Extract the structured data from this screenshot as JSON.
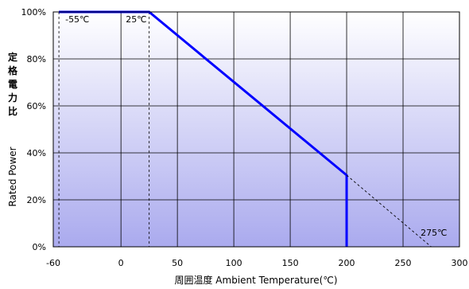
{
  "chart_data": {
    "type": "line",
    "x_range": [
      -60,
      300
    ],
    "y_range": [
      0,
      100
    ],
    "x_ticks": [
      "-60",
      "0",
      "50",
      "100",
      "150",
      "200",
      "250",
      "300"
    ],
    "y_ticks": [
      "0%",
      "20%",
      "40%",
      "60%",
      "80%",
      "100%"
    ],
    "x_tick_values": [
      -60,
      0,
      50,
      100,
      150,
      200,
      250,
      300
    ],
    "y_tick_values": [
      0,
      20,
      40,
      60,
      80,
      100
    ],
    "xlabel": "周囲温度 Ambient Temperature(℃)",
    "ylabel_jp": [
      "定",
      "格",
      "電",
      "力",
      "比"
    ],
    "ylabel_en": "Rated Power",
    "grid": true,
    "series": [
      {
        "style": "solid",
        "color": "#0000ff",
        "points": [
          [
            -55,
            100
          ],
          [
            25,
            100
          ],
          [
            200,
            30.5
          ],
          [
            200,
            0
          ]
        ]
      },
      {
        "style": "dashed",
        "color": "#000000",
        "points": [
          [
            200,
            30.5
          ],
          [
            275,
            0
          ]
        ]
      }
    ],
    "reference_lines": [
      {
        "x": -55,
        "style": "dashed"
      },
      {
        "x": 25,
        "style": "dashed"
      }
    ],
    "annotations": [
      {
        "text": "-55℃",
        "x": -55,
        "y": 100
      },
      {
        "text": "25℃",
        "x": 25,
        "y": 100
      },
      {
        "text": "275℃",
        "x": 275,
        "y": 0
      }
    ],
    "colors": {
      "plot_top": "#ffffff",
      "plot_bottom": "#aaaaee",
      "line": "#0000ff"
    }
  }
}
